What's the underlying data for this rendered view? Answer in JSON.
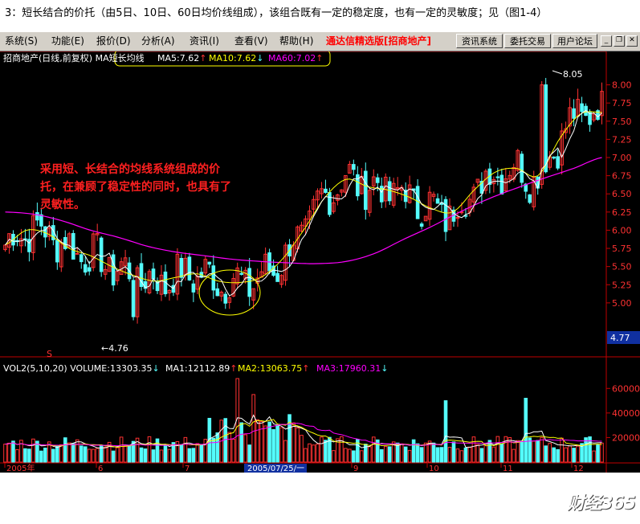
{
  "caption": "3：短长结合的价托（由5日、10日、60日均价线组成），该组合既有一定的稳定度，也有一定的灵敏度；见（图1-4）",
  "menu": {
    "items": [
      "系统(S)",
      "功能(E)",
      "报价(D)",
      "分析(A)",
      "资讯(I)",
      "查看(V)",
      "帮助(H)"
    ],
    "brand": "通达信精选版",
    "stock_link": "[招商地产]",
    "buttons": [
      "资讯系统",
      "委托交易",
      "用户论坛"
    ],
    "window_controls": [
      "minimize-icon",
      "restore-icon",
      "close-icon"
    ]
  },
  "price_header": {
    "title": "招商地产(日线,前复权)",
    "ma_prefix": "MA",
    "formula": "短长均线",
    "ma5": "MA5:7.62",
    "ma10": "MA10:7.62",
    "ma60": "MA60:7.02",
    "arrow_up": "↑",
    "arrow_down": "↓"
  },
  "annotation": "采用短、长结合的均线系统组成的价托，在兼顾了稳定性的同时，也具有了灵敏性。",
  "markers": {
    "high_label": "8.05",
    "low_label": "←4.76",
    "current_price": "4.77",
    "event_marker": "S"
  },
  "volume_header": {
    "title": "VOL2(5,10,20)",
    "volume": "VOLUME:13303.35",
    "ma1": "MA1:12112.89",
    "ma2": "MA2:13063.75",
    "ma3": "MA3:17960.31",
    "arrow_up": "↑",
    "arrow_down": "↓"
  },
  "colors": {
    "up": "#ff3232",
    "down": "#54fcfc",
    "ma5": "#ffffff",
    "ma10": "#ffff00",
    "ma60": "#ff00ff",
    "axis": "#c00000",
    "highlight": "#ffff00"
  },
  "chart_data": [
    {
      "type": "candlestick",
      "title": "招商地产(日线,前复权)",
      "y_ticks": [
        8.0,
        7.75,
        7.5,
        7.25,
        7.0,
        6.75,
        6.5,
        6.25,
        6.0,
        5.75,
        5.5,
        5.25,
        5.0
      ],
      "ylim": [
        4.7,
        8.15
      ],
      "x_ticks": [
        "2005年",
        "6",
        "7",
        "2005/07/25/一",
        "9",
        "10",
        "11",
        "12"
      ],
      "ma60_values": [
        6.25,
        6.22,
        6.13,
        6.0,
        5.9,
        5.78,
        5.7,
        5.65,
        5.6,
        5.57,
        5.55,
        5.54,
        5.57,
        5.68,
        5.87,
        6.05,
        6.25,
        6.43,
        6.58,
        6.72,
        6.85,
        7.0
      ],
      "ma10_values": [
        5.8,
        6.0,
        5.95,
        5.75,
        5.65,
        5.5,
        5.38,
        5.3,
        5.35,
        5.4,
        5.3,
        5.28,
        5.35,
        5.6,
        6.0,
        6.45,
        6.7,
        6.6,
        6.55,
        6.45,
        6.3,
        6.25,
        6.55,
        6.8,
        6.85,
        6.75,
        7.25,
        7.6,
        7.62
      ],
      "low": 4.76,
      "high": 8.05,
      "current": 4.77
    },
    {
      "type": "bar",
      "title": "VOL2(5,10,20)",
      "y_ticks": [
        60000,
        40000,
        20000
      ],
      "ylim": [
        0,
        70000
      ],
      "series": [
        {
          "name": "MA1",
          "value": 12112.89
        },
        {
          "name": "MA2",
          "value": 13063.75
        },
        {
          "name": "MA3",
          "value": 17960.31
        }
      ],
      "last_volume": 13303.35
    }
  ]
}
